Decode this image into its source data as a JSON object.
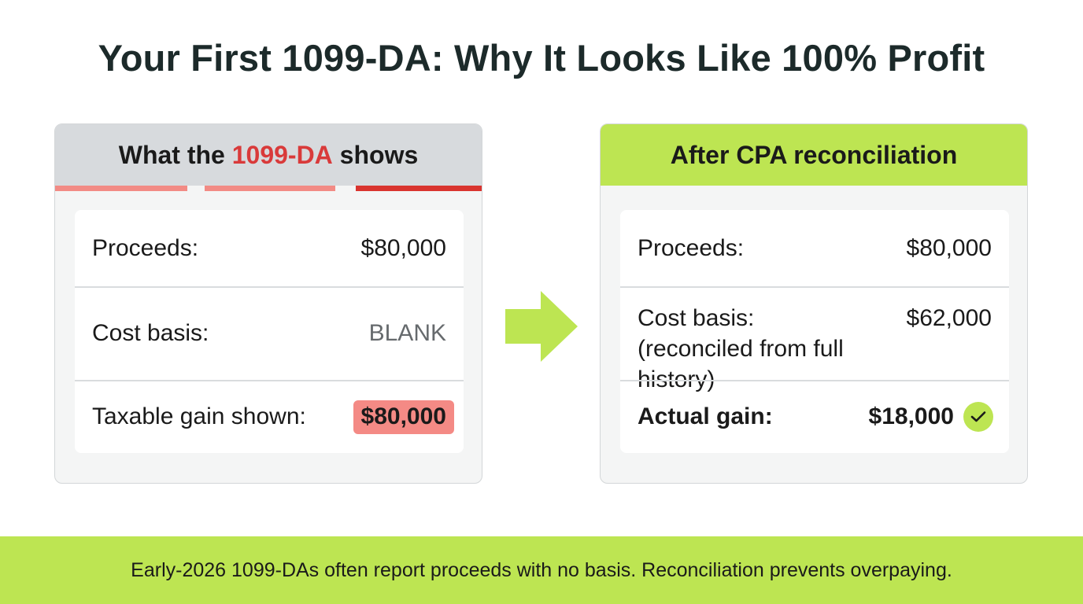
{
  "title": "Your First 1099-DA: Why It Looks Like 100% Profit",
  "left_card": {
    "header_prefix": "What the ",
    "header_highlight": "1099-DA",
    "header_suffix": " shows",
    "proceeds_label": "Proceeds:",
    "proceeds_value": "$80,000",
    "basis_label": "Cost basis:",
    "basis_value": "BLANK",
    "gain_label": "Taxable gain shown:",
    "gain_value": "$80,000"
  },
  "right_card": {
    "header": "After CPA reconciliation",
    "proceeds_label": "Proceeds:",
    "proceeds_value": "$80,000",
    "basis_label": "Cost basis:",
    "basis_note": "(reconciled from full history)",
    "basis_value": "$62,000",
    "gain_label": "Actual gain:",
    "gain_value": "$18,000"
  },
  "footer": "Early-2026 1099-DAs often report proceeds with no basis. Reconciliation prevents overpaying.",
  "colors": {
    "accent_green": "#bde552",
    "alert_red": "#d93a3a",
    "badge_red": "#f48a85"
  },
  "icons": {
    "arrow": "arrow-right-icon",
    "check": "check-circle-icon"
  }
}
